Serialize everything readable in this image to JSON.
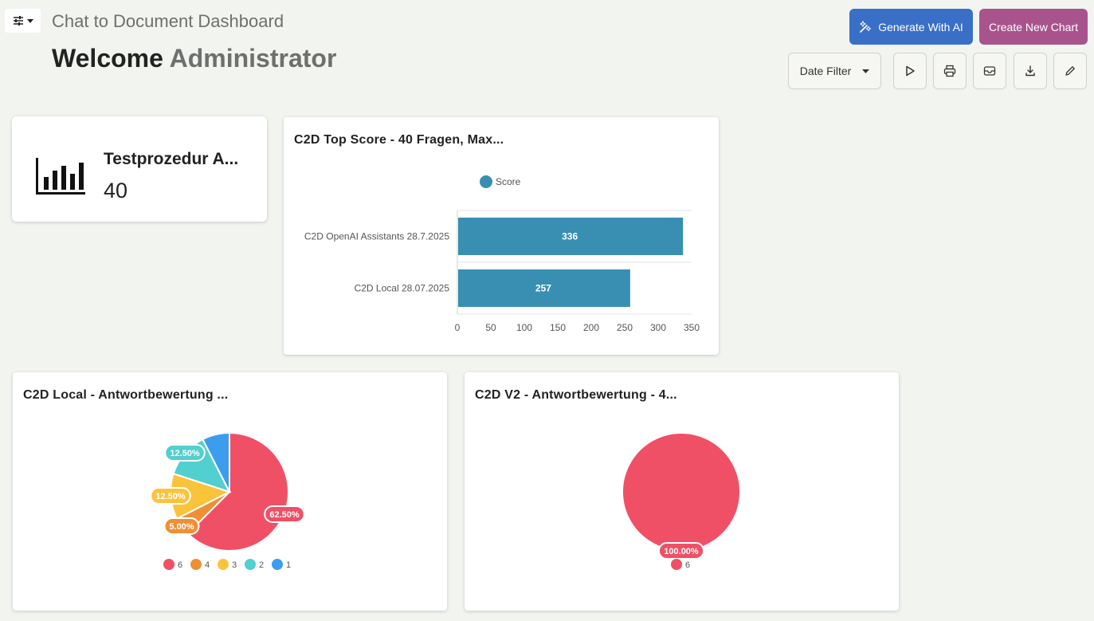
{
  "header": {
    "app_title": "Chat to Document Dashboard",
    "welcome_prefix": "Welcome",
    "user_name": "Administrator",
    "generate_ai_label": "Generate With AI",
    "create_chart_label": "Create New Chart",
    "date_filter_label": "Date Filter"
  },
  "kpi": {
    "label": "Testprozedur A...",
    "value": "40",
    "icon": "bar-chart-icon"
  },
  "colors": {
    "primary": "#3a6fc7",
    "secondary": "#a9538d",
    "bar": "#388fb2"
  },
  "chart_data": [
    {
      "type": "bar",
      "orientation": "horizontal",
      "title": "C2D Top Score - 40 Fragen, Max...",
      "legend": [
        "Score"
      ],
      "legend_position": "top",
      "categories": [
        "C2D OpenAI Assistants 28.7.2025",
        "C2D Local 28.07.2025"
      ],
      "series": [
        {
          "name": "Score",
          "values": [
            336,
            257
          ],
          "color": "#388fb2"
        }
      ],
      "xlim": [
        0,
        350
      ],
      "xticks": [
        "0",
        "50",
        "100",
        "150",
        "200",
        "250",
        "300",
        "350"
      ]
    },
    {
      "type": "pie",
      "title": "C2D Local - Antwortbewertung ...",
      "labels": [
        "6",
        "4",
        "3",
        "2",
        "1"
      ],
      "values": [
        62.5,
        5.0,
        12.5,
        12.5,
        7.5
      ],
      "data_labels": [
        "62.50%",
        "5.00%",
        "12.50%",
        "12.50%",
        ""
      ],
      "colors": [
        "#ef5066",
        "#ef8f35",
        "#fbc33c",
        "#52cfcf",
        "#3c9ded"
      ],
      "legend_position": "bottom"
    },
    {
      "type": "pie",
      "title": "C2D V2 - Antwortbewertung - 4...",
      "labels": [
        "6"
      ],
      "values": [
        100
      ],
      "data_labels": [
        "100.00%"
      ],
      "colors": [
        "#ef5066"
      ],
      "legend_position": "bottom"
    }
  ]
}
